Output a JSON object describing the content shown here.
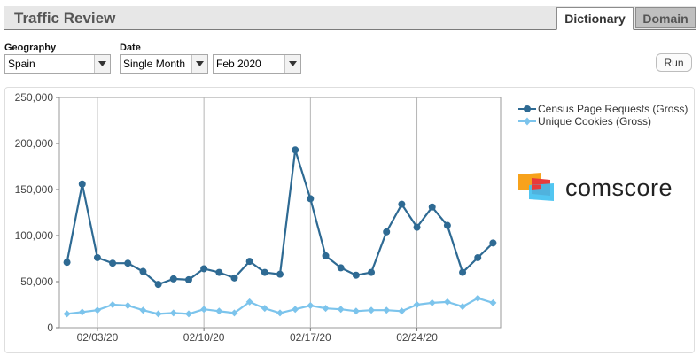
{
  "header": {
    "title": "Traffic Review",
    "tabs": [
      {
        "label": "Dictionary",
        "active": true
      },
      {
        "label": "Domain",
        "active": false
      }
    ]
  },
  "filters": {
    "geography_label": "Geography",
    "geography_value": "Spain",
    "date_label": "Date",
    "date_mode_value": "Single Month",
    "month_value": "Feb 2020",
    "run_label": "Run"
  },
  "legend": [
    {
      "label": "Census Page Requests (Gross)",
      "color": "#2e6a93",
      "marker": "circle"
    },
    {
      "label": "Unique Cookies (Gross)",
      "color": "#7cc4ec",
      "marker": "diamond"
    }
  ],
  "logo": {
    "text": "comscore"
  },
  "chart_data": {
    "type": "line",
    "x": [
      "02/01",
      "02/02",
      "02/03",
      "02/04",
      "02/05",
      "02/06",
      "02/07",
      "02/08",
      "02/09",
      "02/10",
      "02/11",
      "02/12",
      "02/13",
      "02/14",
      "02/15",
      "02/16",
      "02/17",
      "02/18",
      "02/19",
      "02/20",
      "02/21",
      "02/22",
      "02/23",
      "02/24",
      "02/25",
      "02/26",
      "02/27",
      "02/28",
      "02/29"
    ],
    "x_ticks": [
      "02/03/20",
      "02/10/20",
      "02/17/20",
      "02/24/20"
    ],
    "y_ticks": [
      "0",
      "50,000",
      "100,000",
      "150,000",
      "200,000",
      "250,000"
    ],
    "ylim": [
      0,
      250000
    ],
    "grid": "vertical lines at week ticks",
    "legend_position": "right",
    "series": [
      {
        "name": "Census Page Requests (Gross)",
        "color": "#2e6a93",
        "values": [
          71000,
          156000,
          76000,
          70000,
          70000,
          61000,
          47000,
          53000,
          52000,
          64000,
          60000,
          54000,
          72000,
          60000,
          58000,
          193000,
          140000,
          78000,
          65000,
          57000,
          60000,
          104000,
          134000,
          109000,
          131000,
          111000,
          60000,
          76000,
          92000
        ]
      },
      {
        "name": "Unique Cookies (Gross)",
        "color": "#7cc4ec",
        "values": [
          15000,
          17000,
          19000,
          25000,
          24000,
          19000,
          15000,
          16000,
          15000,
          20000,
          18000,
          16000,
          28000,
          21000,
          16000,
          20000,
          24000,
          21000,
          20000,
          18000,
          19000,
          19000,
          18000,
          25000,
          27000,
          28000,
          23000,
          32000,
          27000
        ]
      }
    ]
  }
}
